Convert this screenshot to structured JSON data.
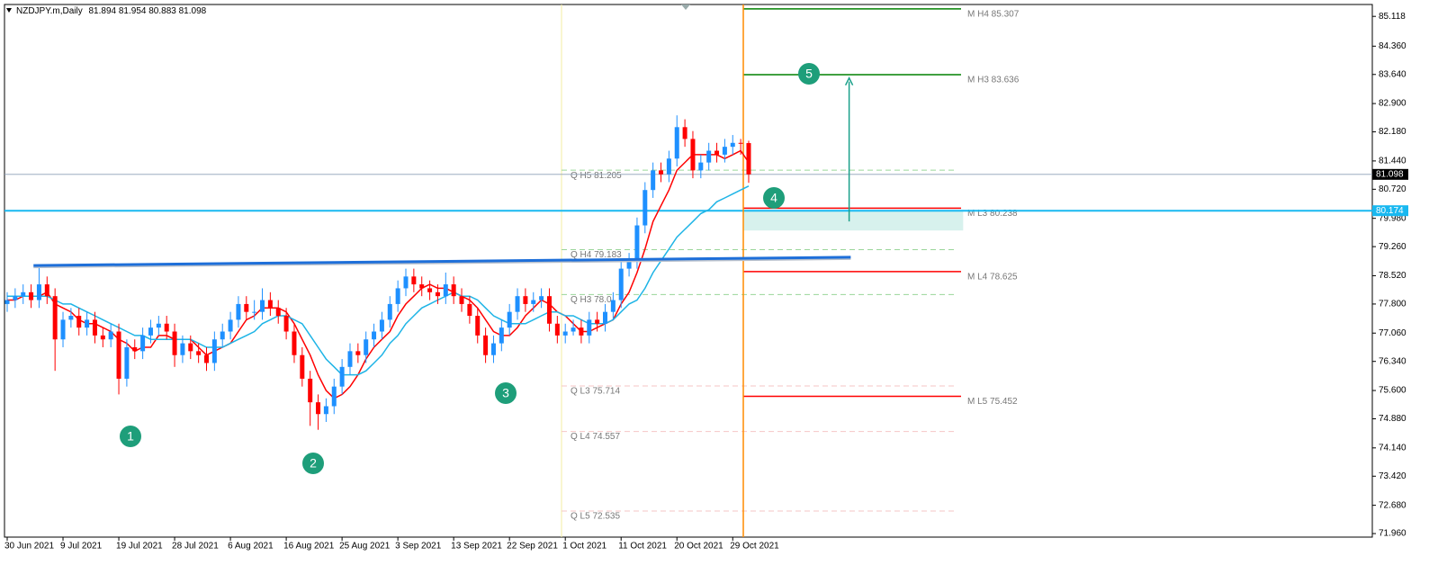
{
  "chart_data": {
    "type": "candlestick",
    "symbol": "NZDJPY.m,Daily",
    "up_color": "#1e90ff",
    "down_color": "#ff0000",
    "ylim": [
      71.87,
      85.42
    ],
    "yticks": [
      85.118,
      {
        "value": 84.36,
        "label": "84.360"
      },
      {
        "value": 83.64,
        "label": "83.640"
      },
      {
        "value": 82.9,
        "label": "82.900"
      },
      {
        "value": 82.18,
        "label": "82.180"
      },
      {
        "value": 81.44,
        "label": "81.440"
      },
      {
        "value": 80.72,
        "label": "80.720"
      },
      {
        "value": 79.98,
        "label": "79.980"
      },
      {
        "value": 79.26,
        "label": "79.260"
      },
      {
        "value": 78.52,
        "label": "78.520"
      },
      {
        "value": 77.8,
        "label": "77.800"
      },
      {
        "value": 77.06,
        "label": "77.060"
      },
      {
        "value": 76.34,
        "label": "76.340"
      },
      {
        "value": 75.6,
        "label": "75.600"
      },
      {
        "value": 74.88,
        "label": "74.880"
      },
      {
        "value": 74.14,
        "label": "74.140"
      },
      {
        "value": 73.42,
        "label": "73.420"
      },
      {
        "value": 72.68,
        "label": "72.680"
      },
      {
        "value": 71.96,
        "label": "71.960"
      }
    ],
    "xticks": [
      {
        "value": 0,
        "label": "30 Jun 2021"
      },
      {
        "value": 7,
        "label": "9 Jul 2021"
      },
      {
        "value": 14,
        "label": "19 Jul 2021"
      },
      {
        "value": 21,
        "label": "28 Jul 2021"
      },
      {
        "value": 28,
        "label": "6 Aug 2021"
      },
      {
        "value": 35,
        "label": "16 Aug 2021"
      },
      {
        "value": 42,
        "label": "25 Aug 2021"
      },
      {
        "value": 49,
        "label": "3 Sep 2021"
      },
      {
        "value": 56,
        "label": "13 Sep 2021"
      },
      {
        "value": 63,
        "label": "22 Sep 2021"
      },
      {
        "value": 70,
        "label": "1 Oct 2021"
      },
      {
        "value": 77,
        "label": "11 Oct 2021"
      },
      {
        "value": 84,
        "label": "20 Oct 2021"
      },
      {
        "value": 91,
        "label": "29 Oct 2021"
      }
    ],
    "candles": [
      [
        77.8,
        78.1,
        77.6,
        77.9
      ],
      [
        77.9,
        78.2,
        77.7,
        78.0
      ],
      [
        78.0,
        78.3,
        77.8,
        78.1
      ],
      [
        78.1,
        78.3,
        77.7,
        77.9
      ],
      [
        77.9,
        78.8,
        77.7,
        78.3
      ],
      [
        78.3,
        78.5,
        77.8,
        78.0
      ],
      [
        78.0,
        78.2,
        76.1,
        76.9
      ],
      [
        76.9,
        77.6,
        76.7,
        77.4
      ],
      [
        77.4,
        77.7,
        77.2,
        77.5
      ],
      [
        77.5,
        77.7,
        77.0,
        77.2
      ],
      [
        77.2,
        77.6,
        77.0,
        77.4
      ],
      [
        77.4,
        77.6,
        76.8,
        77.0
      ],
      [
        77.0,
        77.2,
        76.7,
        76.9
      ],
      [
        76.9,
        77.3,
        76.7,
        77.1
      ],
      [
        77.1,
        77.3,
        75.5,
        75.9
      ],
      [
        75.9,
        76.9,
        75.7,
        76.7
      ],
      [
        76.7,
        76.9,
        76.4,
        76.6
      ],
      [
        76.6,
        77.2,
        76.4,
        77.0
      ],
      [
        77.0,
        77.4,
        76.8,
        77.2
      ],
      [
        77.2,
        77.5,
        77.0,
        77.3
      ],
      [
        77.3,
        77.5,
        76.9,
        77.1
      ],
      [
        77.1,
        77.3,
        76.2,
        76.5
      ],
      [
        76.5,
        77.0,
        76.3,
        76.8
      ],
      [
        76.8,
        77.0,
        76.4,
        76.6
      ],
      [
        76.6,
        76.8,
        76.3,
        76.5
      ],
      [
        76.5,
        76.7,
        76.1,
        76.3
      ],
      [
        76.3,
        77.1,
        76.1,
        76.9
      ],
      [
        76.9,
        77.3,
        76.7,
        77.1
      ],
      [
        77.1,
        77.6,
        76.9,
        77.4
      ],
      [
        77.4,
        78.0,
        77.2,
        77.8
      ],
      [
        77.8,
        78.0,
        77.4,
        77.6
      ],
      [
        77.6,
        77.9,
        77.4,
        77.6
      ],
      [
        77.6,
        78.2,
        77.4,
        77.9
      ],
      [
        77.9,
        78.1,
        77.5,
        77.7
      ],
      [
        77.7,
        77.9,
        77.3,
        77.5
      ],
      [
        77.5,
        77.7,
        76.9,
        77.1
      ],
      [
        77.1,
        77.3,
        76.3,
        76.5
      ],
      [
        76.5,
        76.7,
        75.7,
        75.9
      ],
      [
        75.9,
        76.1,
        74.7,
        75.3
      ],
      [
        75.3,
        75.5,
        74.6,
        75.0
      ],
      [
        75.0,
        75.4,
        74.8,
        75.2
      ],
      [
        75.2,
        75.9,
        75.0,
        75.7
      ],
      [
        75.7,
        76.4,
        75.5,
        76.2
      ],
      [
        76.2,
        76.8,
        76.0,
        76.6
      ],
      [
        76.6,
        76.8,
        76.3,
        76.5
      ],
      [
        76.5,
        77.1,
        76.3,
        76.9
      ],
      [
        76.9,
        77.3,
        76.7,
        77.1
      ],
      [
        77.1,
        77.6,
        76.9,
        77.4
      ],
      [
        77.4,
        78.0,
        77.2,
        77.8
      ],
      [
        77.8,
        78.4,
        77.6,
        78.2
      ],
      [
        78.2,
        78.7,
        78.0,
        78.5
      ],
      [
        78.5,
        78.7,
        78.1,
        78.3
      ],
      [
        78.3,
        78.5,
        78.0,
        78.2
      ],
      [
        78.2,
        78.4,
        77.9,
        78.1
      ],
      [
        78.1,
        78.3,
        77.8,
        78.0
      ],
      [
        78.0,
        78.6,
        77.8,
        78.3
      ],
      [
        78.3,
        78.5,
        77.8,
        78.0
      ],
      [
        78.0,
        78.2,
        77.6,
        77.8
      ],
      [
        77.8,
        78.0,
        77.3,
        77.5
      ],
      [
        77.5,
        77.7,
        76.8,
        77.0
      ],
      [
        77.0,
        77.2,
        76.3,
        76.5
      ],
      [
        76.5,
        77.0,
        76.3,
        76.8
      ],
      [
        76.8,
        77.4,
        76.6,
        77.2
      ],
      [
        77.2,
        77.8,
        77.0,
        77.6
      ],
      [
        77.6,
        78.2,
        77.4,
        78.0
      ],
      [
        78.0,
        78.2,
        77.6,
        77.8
      ],
      [
        77.8,
        78.1,
        77.6,
        77.9
      ],
      [
        77.9,
        78.2,
        77.7,
        78.0
      ],
      [
        78.0,
        78.2,
        77.1,
        77.3
      ],
      [
        77.3,
        77.5,
        76.8,
        77.0
      ],
      [
        77.0,
        77.3,
        76.8,
        77.1
      ],
      [
        77.1,
        77.4,
        77.0,
        77.2
      ],
      [
        77.2,
        77.4,
        76.8,
        77.0
      ],
      [
        77.0,
        77.6,
        76.8,
        77.4
      ],
      [
        77.4,
        77.6,
        77.1,
        77.3
      ],
      [
        77.3,
        77.8,
        77.1,
        77.6
      ],
      [
        77.6,
        78.1,
        77.4,
        77.9
      ],
      [
        77.9,
        78.9,
        77.7,
        78.7
      ],
      [
        78.7,
        79.1,
        78.5,
        78.9
      ],
      [
        78.9,
        80.0,
        78.7,
        79.8
      ],
      [
        79.8,
        80.9,
        79.6,
        80.7
      ],
      [
        80.7,
        81.4,
        80.5,
        81.2
      ],
      [
        81.2,
        81.4,
        80.9,
        81.1
      ],
      [
        81.1,
        81.7,
        80.9,
        81.5
      ],
      [
        81.5,
        82.6,
        81.3,
        82.3
      ],
      [
        82.3,
        82.5,
        81.8,
        82.0
      ],
      [
        82.0,
        82.2,
        81.0,
        81.2
      ],
      [
        81.2,
        81.6,
        81.0,
        81.4
      ],
      [
        81.4,
        81.9,
        81.2,
        81.7
      ],
      [
        81.7,
        81.9,
        81.4,
        81.6
      ],
      [
        81.6,
        82.0,
        81.4,
        81.8
      ],
      [
        81.8,
        82.1,
        81.6,
        81.9
      ],
      [
        81.9,
        82.0,
        81.6,
        81.894
      ],
      [
        81.894,
        81.954,
        80.883,
        81.098
      ]
    ],
    "series": [
      {
        "color": "#ff0000",
        "values": [
          77.9,
          77.9,
          78.0,
          78.0,
          78.0,
          78.1,
          77.8,
          77.7,
          77.6,
          77.4,
          77.3,
          77.3,
          77.2,
          77.1,
          76.9,
          76.8,
          76.6,
          76.7,
          76.7,
          77.0,
          77.0,
          76.9,
          76.9,
          76.9,
          76.7,
          76.5,
          76.6,
          76.7,
          76.8,
          77.1,
          77.4,
          77.5,
          77.7,
          77.7,
          77.7,
          77.6,
          77.3,
          76.9,
          76.5,
          76.0,
          75.6,
          75.4,
          75.5,
          75.7,
          76.0,
          76.4,
          76.7,
          76.9,
          77.1,
          77.5,
          77.8,
          78.0,
          78.2,
          78.3,
          78.2,
          78.2,
          78.1,
          78.0,
          77.9,
          77.7,
          77.4,
          77.1,
          77.0,
          77.0,
          77.2,
          77.5,
          77.7,
          77.9,
          77.8,
          77.6,
          77.5,
          77.3,
          77.1,
          77.1,
          77.2,
          77.3,
          77.4,
          77.8,
          78.1,
          78.6,
          79.2,
          79.9,
          80.3,
          80.7,
          81.2,
          81.4,
          81.6,
          81.6,
          81.6,
          81.6,
          81.5,
          81.6,
          81.7,
          81.4
        ]
      },
      {
        "color": "#1eb4e6",
        "values": [
          78.0,
          78.0,
          78.0,
          78.0,
          78.0,
          78.0,
          77.9,
          77.8,
          77.8,
          77.7,
          77.6,
          77.5,
          77.4,
          77.3,
          77.2,
          77.1,
          77.0,
          77.0,
          76.9,
          76.9,
          76.9,
          76.9,
          76.9,
          76.9,
          76.8,
          76.7,
          76.7,
          76.7,
          76.8,
          76.9,
          77.0,
          77.1,
          77.3,
          77.4,
          77.5,
          77.5,
          77.4,
          77.3,
          77.0,
          76.7,
          76.4,
          76.2,
          76.0,
          76.0,
          76.0,
          76.1,
          76.3,
          76.5,
          76.8,
          77.0,
          77.3,
          77.5,
          77.7,
          77.8,
          77.9,
          78.0,
          78.1,
          78.0,
          78.0,
          77.9,
          77.7,
          77.5,
          77.4,
          77.3,
          77.3,
          77.3,
          77.4,
          77.5,
          77.6,
          77.6,
          77.5,
          77.5,
          77.4,
          77.3,
          77.3,
          77.3,
          77.4,
          77.6,
          77.8,
          77.9,
          78.2,
          78.6,
          78.9,
          79.2,
          79.5,
          79.7,
          79.9,
          80.1,
          80.2,
          80.4,
          80.5,
          80.6,
          80.7,
          80.8
        ]
      }
    ],
    "levels": [
      {
        "label": "M H4 85.307",
        "value": 85.307,
        "color": "#008000",
        "style": "solid"
      },
      {
        "label": "M H3 83.636",
        "value": 83.636,
        "color": "#008000",
        "style": "solid"
      },
      {
        "label": "M L3 80.238",
        "value": 80.238,
        "color": "#ff0000",
        "style": "solid"
      },
      {
        "label": "M L4 78.625",
        "value": 78.625,
        "color": "#ff0000",
        "style": "solid"
      },
      {
        "label": "M L5 75.452",
        "value": 75.452,
        "color": "#ff0000",
        "style": "solid"
      },
      {
        "label": "Q H5 81.205",
        "value": 81.205,
        "color": "#9ad69a",
        "style": "dashed"
      },
      {
        "label": "Q H4 79.183",
        "value": 79.183,
        "color": "#9ad69a",
        "style": "dashed"
      },
      {
        "label": "Q H3 78.0",
        "value": 78.04,
        "color": "#9ad69a",
        "style": "dashed"
      },
      {
        "label": "Q L3 75.714",
        "value": 75.714,
        "color": "#f5c6c6",
        "style": "dashed"
      },
      {
        "label": "Q L4 74.557",
        "value": 74.557,
        "color": "#f5c6c6",
        "style": "dashed"
      },
      {
        "label": "Q L5 72.535",
        "value": 72.535,
        "color": "#f5c6c6",
        "style": "dashed"
      }
    ],
    "support_line": 80.174,
    "trendline": {
      "x": [
        3.3,
        105.8
      ],
      "y": [
        78.78,
        78.99
      ],
      "color": "#1e6fd9"
    },
    "zone": {
      "x": [
        92.3,
        119.9
      ],
      "y": [
        79.67,
        80.174
      ],
      "color": "#cdeee8"
    },
    "target_arrow": {
      "x": 105.6,
      "y": [
        79.9,
        83.55
      ],
      "color": "#1aa08a"
    },
    "markers": [
      "1",
      "2",
      "3",
      "4",
      "5"
    ]
  }
}
